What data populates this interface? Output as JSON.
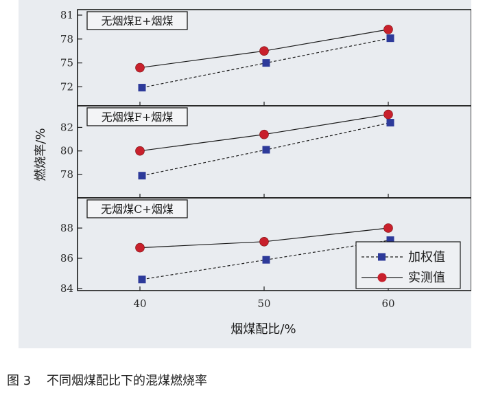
{
  "figure": {
    "caption": "图 3    不同烟煤配比下的混煤燃烧率"
  },
  "chart_data": {
    "type": "line",
    "xlabel": "烟煤配比/%",
    "ylabel": "燃烧率/%",
    "x": [
      40,
      50,
      60
    ],
    "x_ticks": [
      "40",
      "50",
      "60"
    ],
    "legend": {
      "placement": "lower-right",
      "entries": [
        "加权值",
        "实测值"
      ]
    },
    "colors": {
      "weighted": "#2d3a9a",
      "measured": "#c8202c",
      "line": "#1a1a1a"
    },
    "panels": [
      {
        "title": "无烟煤E+烟煤",
        "ylim": [
          71,
          81
        ],
        "y_ticks": [
          "72",
          "75",
          "78",
          "81"
        ],
        "series": [
          {
            "name": "加权值",
            "style": "dashed",
            "marker": "square",
            "values": [
              71.9,
              75.0,
              78.1
            ]
          },
          {
            "name": "实测值",
            "style": "solid",
            "marker": "circle",
            "values": [
              74.4,
              76.5,
              79.2
            ]
          }
        ]
      },
      {
        "title": "无烟煤F+烟煤",
        "ylim": [
          77.3,
          83.6
        ],
        "y_ticks": [
          "78",
          "80",
          "82"
        ],
        "series": [
          {
            "name": "加权值",
            "style": "dashed",
            "marker": "square",
            "values": [
              77.9,
              80.1,
              82.4
            ]
          },
          {
            "name": "实测值",
            "style": "solid",
            "marker": "circle",
            "values": [
              80.0,
              81.4,
              83.1
            ]
          }
        ]
      },
      {
        "title": "无烟煤C+烟煤",
        "ylim": [
          84,
          89
        ],
        "y_ticks": [
          "84",
          "86",
          "88"
        ],
        "series": [
          {
            "name": "加权值",
            "style": "dashed",
            "marker": "square",
            "values": [
              84.6,
              85.9,
              87.2
            ]
          },
          {
            "name": "实测值",
            "style": "solid",
            "marker": "circle",
            "values": [
              86.7,
              87.1,
              88.0
            ]
          }
        ]
      }
    ]
  }
}
